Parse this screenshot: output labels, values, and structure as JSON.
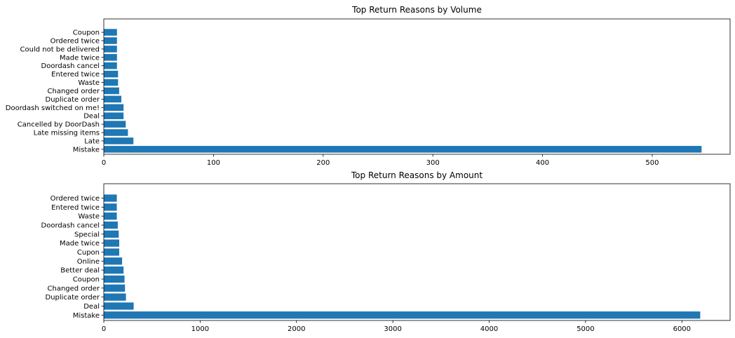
{
  "chart_data": [
    {
      "type": "bar",
      "orientation": "horizontal",
      "title": "Top Return Reasons by Volume",
      "xlabel": "",
      "ylabel": "",
      "categories": [
        "Mistake",
        "Late",
        "Late missing items",
        "Cancelled by DoorDash",
        "Deal",
        "Doordash switched on me!",
        "Duplicate order",
        "Changed order",
        "Waste",
        "Entered twice",
        "Doordash cancel",
        "Made twice",
        "Could not be delivered",
        "Ordered twice",
        "Coupon"
      ],
      "values": [
        545,
        27,
        22,
        20,
        18,
        18,
        16,
        14,
        13,
        13,
        12,
        12,
        12,
        12,
        12
      ],
      "xlim": [
        0,
        571
      ],
      "xticks": [
        0,
        100,
        200,
        300,
        400,
        500
      ],
      "bar_color": "#1f77b4",
      "grid": false,
      "legend": "none"
    },
    {
      "type": "bar",
      "orientation": "horizontal",
      "title": "Top Return Reasons by Amount",
      "xlabel": "",
      "ylabel": "",
      "categories": [
        "Mistake",
        "Deal",
        "Duplicate order",
        "Changed order",
        "Coupon",
        "Better deal",
        "Online",
        "Cupon",
        "Made twice",
        "Special",
        "Doordash cancel",
        "Waste",
        "Entered twice",
        "Ordered twice"
      ],
      "values": [
        6190,
        310,
        230,
        220,
        215,
        205,
        190,
        160,
        160,
        155,
        145,
        135,
        135,
        135
      ],
      "xlim": [
        0,
        6500
      ],
      "xticks": [
        0,
        1000,
        2000,
        3000,
        4000,
        5000,
        6000
      ],
      "bar_color": "#1f77b4",
      "grid": false,
      "legend": "none"
    }
  ]
}
